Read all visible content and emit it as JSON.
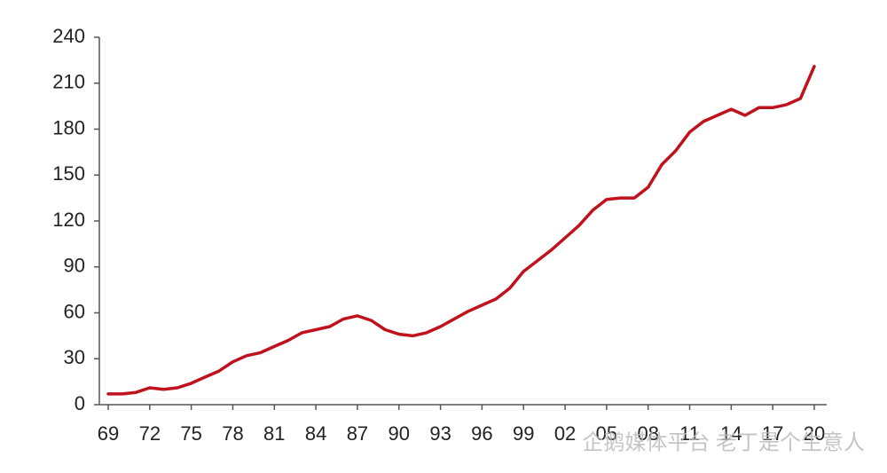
{
  "chart_data": {
    "type": "line",
    "categories": [
      "69",
      null,
      null,
      "72",
      null,
      null,
      "75",
      null,
      null,
      "78",
      null,
      null,
      "81",
      null,
      null,
      "84",
      null,
      null,
      "87",
      null,
      null,
      "90",
      null,
      null,
      "93",
      null,
      null,
      "96",
      null,
      null,
      "99",
      null,
      null,
      "02",
      null,
      null,
      "05",
      null,
      null,
      "08",
      null,
      null,
      "11",
      null,
      null,
      "14",
      null,
      null,
      "17",
      null,
      null,
      "20"
    ],
    "series": [
      {
        "color": "#c0121c",
        "values": [
          7,
          7,
          8,
          11,
          10,
          11,
          14,
          18,
          22,
          28,
          32,
          34,
          38,
          42,
          47,
          49,
          51,
          56,
          58,
          55,
          49,
          46,
          45,
          47,
          51,
          56,
          61,
          65,
          69,
          76,
          87,
          94,
          101,
          109,
          117,
          127,
          134,
          135,
          135,
          142,
          157,
          166,
          178,
          185,
          189,
          193,
          189,
          194,
          194,
          196,
          200,
          221
        ]
      }
    ],
    "ylim": [
      0,
      240
    ],
    "yticks": [
      0,
      30,
      60,
      90,
      120,
      150,
      180,
      210,
      240
    ],
    "grid": false
  },
  "watermark": "企鹅媒体平台 老丁是个生意人"
}
